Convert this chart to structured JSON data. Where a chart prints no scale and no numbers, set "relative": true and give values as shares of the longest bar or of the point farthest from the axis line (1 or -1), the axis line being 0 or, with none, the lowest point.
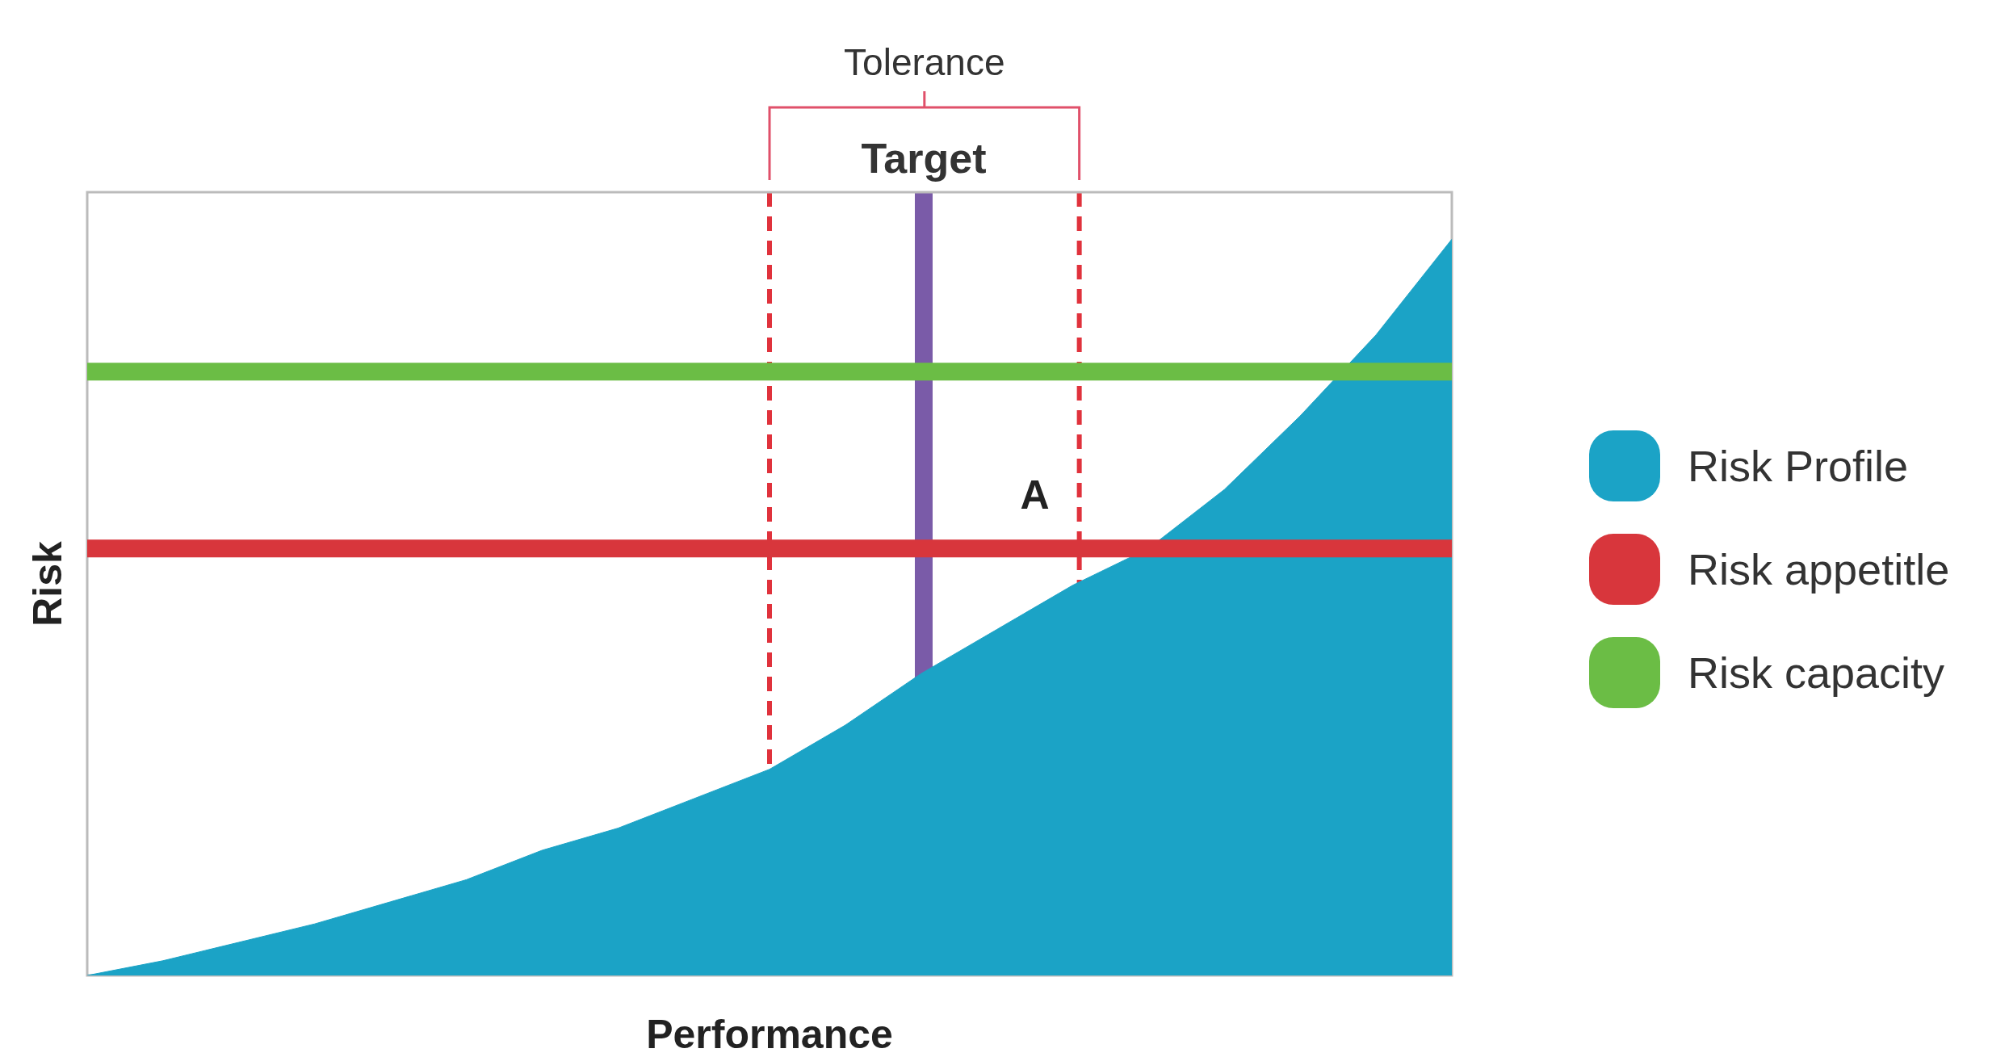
{
  "chart_data": {
    "type": "area",
    "relative": true,
    "xlabel": "Performance",
    "ylabel": "Risk",
    "legend": "right",
    "grid": false,
    "categories": [
      null,
      null,
      null,
      null,
      null,
      null,
      null,
      null,
      null,
      null,
      null,
      null,
      null,
      null,
      null,
      null,
      null,
      null,
      null
    ],
    "series": [
      {
        "name": "Risk Profile",
        "color": "#1ba3c6",
        "values": [
          0,
          0.02,
          0.045,
          0.07,
          0.1,
          0.13,
          0.17,
          0.2,
          0.24,
          0.28,
          0.34,
          0.41,
          0.47,
          0.53,
          0.58,
          0.66,
          0.76,
          0.87,
          1
        ]
      },
      {
        "name": "Risk appetitle",
        "type": "line",
        "color": "#d8363c",
        "values": [
          0.58,
          0.58,
          0.58,
          0.58,
          0.58,
          0.58,
          0.58,
          0.58,
          0.58,
          0.58,
          0.58,
          0.58,
          0.58,
          0.58,
          0.58,
          0.58,
          0.58,
          0.58,
          0.58
        ]
      },
      {
        "name": "Risk capacity",
        "type": "line",
        "color": "#6bbd45",
        "values": [
          0.82,
          0.82,
          0.82,
          0.82,
          0.82,
          0.82,
          0.82,
          0.82,
          0.82,
          0.82,
          0.82,
          0.82,
          0.82,
          0.82,
          0.82,
          0.82,
          0.82,
          0.82,
          0.82
        ]
      }
    ],
    "annotations": [
      "Tolerance",
      "Target",
      "A"
    ]
  }
}
